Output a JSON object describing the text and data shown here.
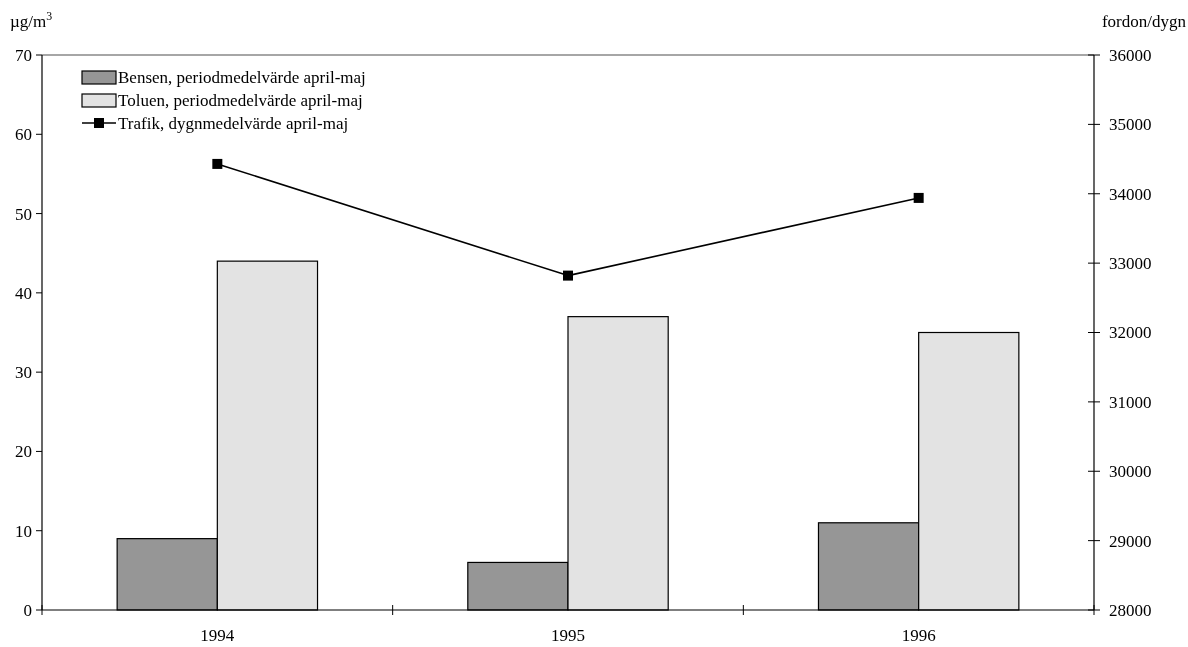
{
  "chart_data": {
    "type": "bar",
    "categories": [
      "1994",
      "1995",
      "1996"
    ],
    "ylabel": "µg/m$^{3}$",
    "y2label": "fordon/dygn",
    "ylim": [
      0,
      70
    ],
    "yticks": [
      0,
      10,
      20,
      30,
      40,
      50,
      60,
      70
    ],
    "y2lim": [
      28000,
      36000
    ],
    "y2ticks": [
      28000,
      29000,
      30000,
      31000,
      32000,
      33000,
      34000,
      35000,
      36000
    ],
    "series": [
      {
        "name": "Bensen, periodmedelvärde april-maj",
        "color": "#969696",
        "values": [
          9,
          6,
          11
        ]
      },
      {
        "name": "Toluen, periodmedelvärde april-maj",
        "color": "#e3e3e3",
        "values": [
          44,
          37,
          35
        ]
      },
      {
        "name": "Trafik, dygnmedelvärde april-maj",
        "type": "line",
        "axis": "y2",
        "color": "#000000",
        "marker": "square",
        "values": [
          34430,
          32820,
          33940
        ]
      }
    ],
    "legend": "top left",
    "grid": false
  }
}
